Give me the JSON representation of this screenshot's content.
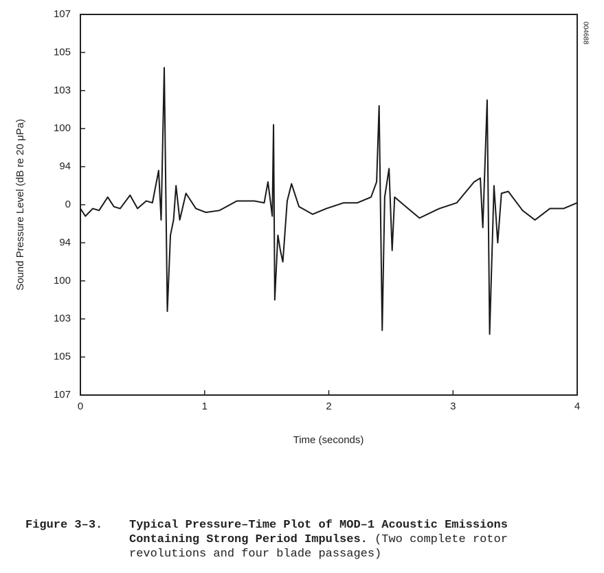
{
  "chart_data": {
    "type": "line",
    "xlabel": "Time (seconds)",
    "ylabel": "Sound Pressure Level (dB re 20 μPa)",
    "side_code": "004688",
    "xlim": [
      0,
      4
    ],
    "xticks": [
      0,
      1,
      2,
      3,
      4
    ],
    "ylim": [
      -5,
      5
    ],
    "yticks": [
      {
        "value": -5,
        "label": "107"
      },
      {
        "value": -4,
        "label": "105"
      },
      {
        "value": -3,
        "label": "103"
      },
      {
        "value": -2,
        "label": "100"
      },
      {
        "value": -1,
        "label": "94"
      },
      0,
      {
        "value": 1,
        "label": "94"
      },
      {
        "value": 2,
        "label": "100"
      },
      {
        "value": 3,
        "label": "103"
      },
      {
        "value": 4,
        "label": "105"
      },
      {
        "value": 5,
        "label": "107"
      }
    ],
    "series": [
      {
        "color": "#1a1a1a",
        "x": [
          0,
          0.04,
          0.1,
          0.15,
          0.22,
          0.27,
          0.32,
          0.4,
          0.46,
          0.53,
          0.58,
          0.63,
          0.65,
          0.675,
          0.7,
          0.725,
          0.75,
          0.77,
          0.8,
          0.85,
          0.93,
          1.01,
          1.12,
          1.26,
          1.4,
          1.48,
          1.51,
          1.545,
          1.555,
          1.565,
          1.59,
          1.61,
          1.63,
          1.665,
          1.7,
          1.76,
          1.87,
          1.98,
          2.12,
          2.23,
          2.34,
          2.385,
          2.405,
          2.43,
          2.45,
          2.485,
          2.51,
          2.53,
          2.62,
          2.73,
          2.89,
          3.03,
          3.17,
          3.22,
          3.24,
          3.275,
          3.295,
          3.33,
          3.36,
          3.39,
          3.445,
          3.56,
          3.66,
          3.78,
          3.89,
          4
        ],
        "values": [
          -0.1,
          -0.3,
          -0.1,
          -0.15,
          0.2,
          -0.05,
          -0.1,
          0.25,
          -0.1,
          0.1,
          0.05,
          0.9,
          -0.4,
          3.6,
          -2.8,
          -0.8,
          -0.4,
          0.5,
          -0.4,
          0.3,
          -0.1,
          -0.2,
          -0.15,
          0.1,
          0.1,
          0.05,
          0.6,
          -0.3,
          2.1,
          -2.5,
          -0.8,
          -1.2,
          -1.5,
          0.1,
          0.55,
          -0.05,
          -0.25,
          -0.1,
          0.05,
          0.05,
          0.2,
          0.6,
          2.6,
          -3.3,
          0.2,
          0.95,
          -1.2,
          0.2,
          -0.05,
          -0.35,
          -0.1,
          0.05,
          0.6,
          0.7,
          -0.6,
          2.75,
          -3.4,
          0.5,
          -1.0,
          0.3,
          0.35,
          -0.15,
          -0.4,
          -0.1,
          -0.1,
          0.05
        ]
      }
    ]
  },
  "caption": {
    "figure": "Figure 3–3.",
    "title": "Typical Pressure–Time Plot of MOD–1 Acoustic Emissions Containing Strong Period Impulses.",
    "note": "(Two complete rotor revolutions and four blade passages)"
  }
}
